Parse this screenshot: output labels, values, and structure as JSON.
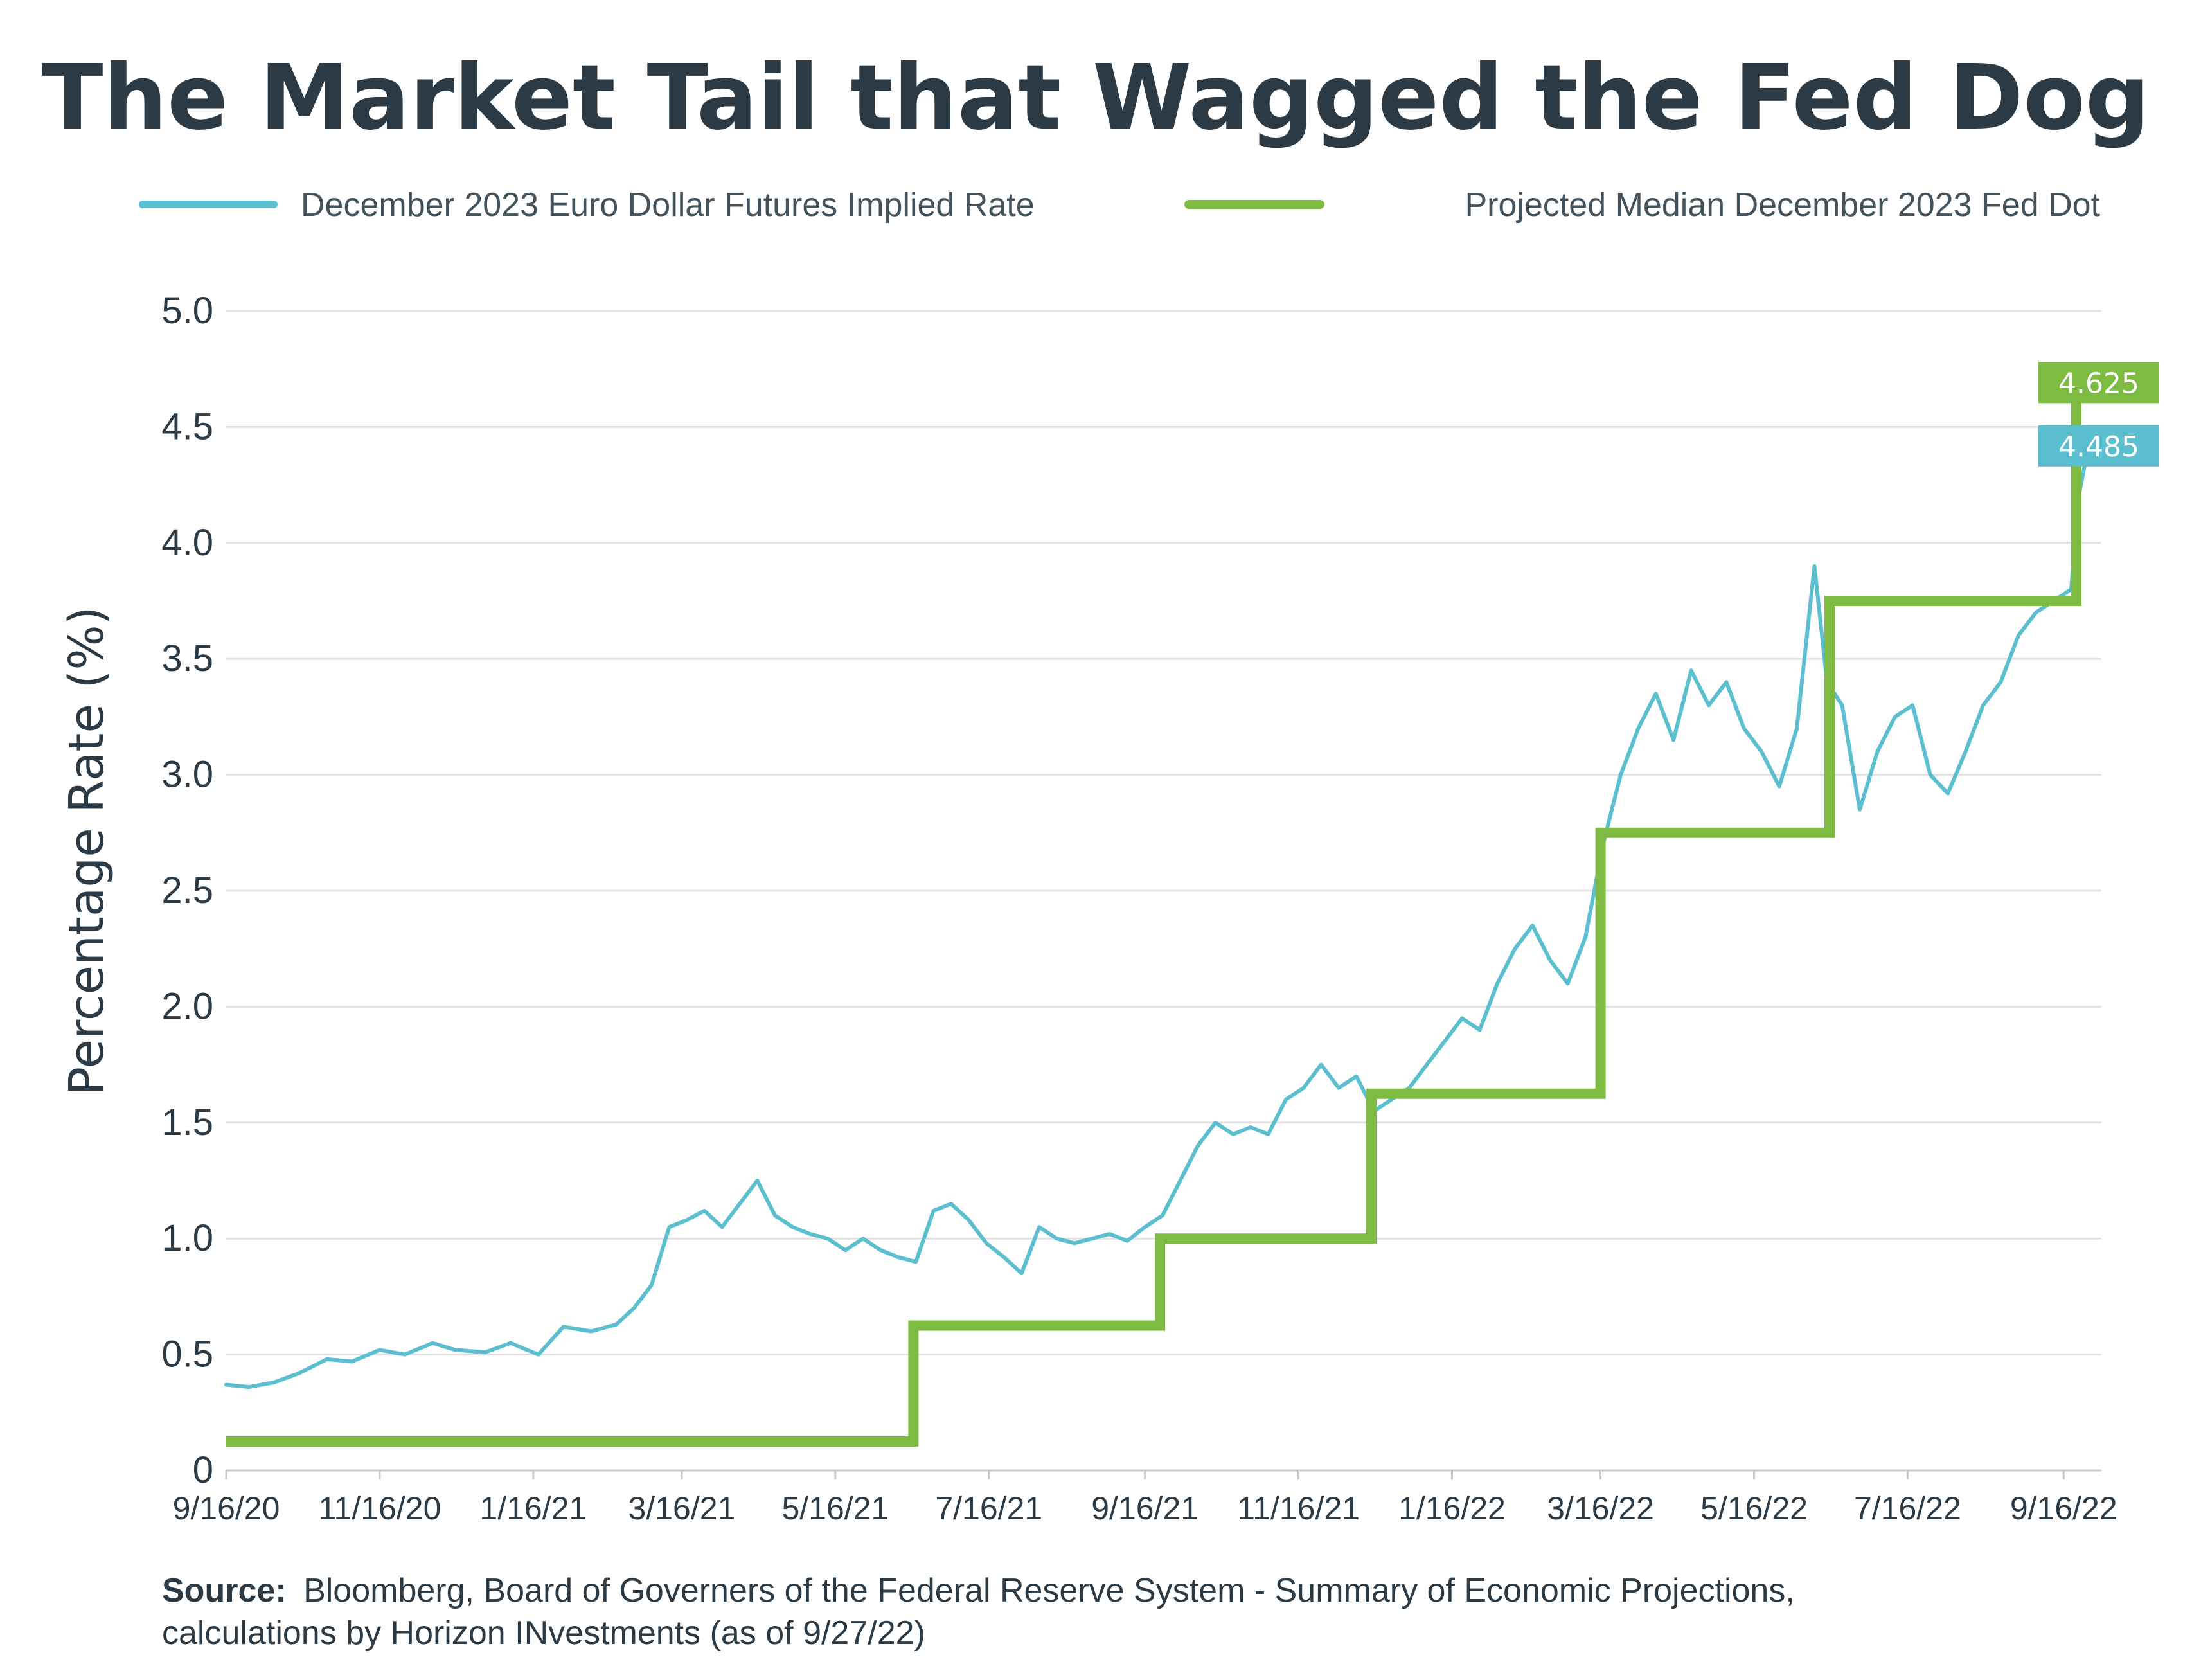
{
  "chart_data": {
    "type": "line",
    "title": "The Market Tail that Wagged the Fed Dog",
    "ylabel": "Percentage Rate (%)",
    "xlabel": "",
    "ylim": [
      0,
      5.0
    ],
    "y_ticks": [
      0,
      0.5,
      1.0,
      1.5,
      2.0,
      2.5,
      3.0,
      3.5,
      4.0,
      4.5,
      5.0
    ],
    "y_tick_labels": [
      "0",
      "0.5",
      "1.0",
      "1.5",
      "2.0",
      "2.5",
      "3.0",
      "3.5",
      "4.0",
      "4.5",
      "5.0"
    ],
    "x_range": [
      "2020-09-16",
      "2022-10-01"
    ],
    "x_ticks": [
      "2020-09-16",
      "2020-11-16",
      "2021-01-16",
      "2021-03-16",
      "2021-05-16",
      "2021-07-16",
      "2021-09-16",
      "2021-11-16",
      "2022-01-16",
      "2022-03-16",
      "2022-05-16",
      "2022-07-16",
      "2022-09-16"
    ],
    "x_tick_labels": [
      "9/16/20",
      "11/16/20",
      "1/16/21",
      "3/16/21",
      "5/16/21",
      "7/16/21",
      "9/16/21",
      "11/16/21",
      "1/16/22",
      "3/16/22",
      "5/16/22",
      "7/16/22",
      "9/16/22"
    ],
    "grid": "horizontal",
    "legend_position": "top",
    "series": [
      {
        "name": "December 2023 Euro Dollar Futures Implied Rate",
        "color": "#5bbfcf",
        "end_label": "4.485",
        "x": [
          "2020-09-16",
          "2020-09-25",
          "2020-10-05",
          "2020-10-15",
          "2020-10-26",
          "2020-11-05",
          "2020-11-16",
          "2020-11-26",
          "2020-12-07",
          "2020-12-16",
          "2020-12-28",
          "2021-01-07",
          "2021-01-18",
          "2021-01-28",
          "2021-02-08",
          "2021-02-18",
          "2021-02-25",
          "2021-03-04",
          "2021-03-11",
          "2021-03-18",
          "2021-03-25",
          "2021-04-01",
          "2021-04-08",
          "2021-04-15",
          "2021-04-22",
          "2021-04-29",
          "2021-05-06",
          "2021-05-13",
          "2021-05-20",
          "2021-05-27",
          "2021-06-03",
          "2021-06-10",
          "2021-06-17",
          "2021-06-24",
          "2021-07-01",
          "2021-07-08",
          "2021-07-15",
          "2021-07-22",
          "2021-07-29",
          "2021-08-05",
          "2021-08-12",
          "2021-08-19",
          "2021-08-26",
          "2021-09-02",
          "2021-09-09",
          "2021-09-16",
          "2021-09-23",
          "2021-09-30",
          "2021-10-07",
          "2021-10-14",
          "2021-10-21",
          "2021-10-28",
          "2021-11-04",
          "2021-11-11",
          "2021-11-18",
          "2021-11-25",
          "2021-12-02",
          "2021-12-09",
          "2021-12-16",
          "2021-12-23",
          "2021-12-30",
          "2022-01-06",
          "2022-01-13",
          "2022-01-20",
          "2022-01-27",
          "2022-02-03",
          "2022-02-10",
          "2022-02-17",
          "2022-02-24",
          "2022-03-03",
          "2022-03-10",
          "2022-03-17",
          "2022-03-24",
          "2022-03-31",
          "2022-04-07",
          "2022-04-14",
          "2022-04-21",
          "2022-04-28",
          "2022-05-05",
          "2022-05-12",
          "2022-05-19",
          "2022-05-26",
          "2022-06-02",
          "2022-06-09",
          "2022-06-14",
          "2022-06-20",
          "2022-06-27",
          "2022-07-04",
          "2022-07-11",
          "2022-07-18",
          "2022-07-25",
          "2022-08-01",
          "2022-08-08",
          "2022-08-15",
          "2022-08-22",
          "2022-08-29",
          "2022-09-05",
          "2022-09-12",
          "2022-09-19",
          "2022-09-22",
          "2022-09-27"
        ],
        "y": [
          0.37,
          0.36,
          0.38,
          0.42,
          0.48,
          0.47,
          0.52,
          0.5,
          0.55,
          0.52,
          0.51,
          0.55,
          0.5,
          0.62,
          0.6,
          0.63,
          0.7,
          0.8,
          1.05,
          1.08,
          1.12,
          1.05,
          1.15,
          1.25,
          1.1,
          1.05,
          1.02,
          1.0,
          0.95,
          1.0,
          0.95,
          0.92,
          0.9,
          1.12,
          1.15,
          1.08,
          0.98,
          0.92,
          0.85,
          1.05,
          1.0,
          0.98,
          1.0,
          1.02,
          0.99,
          1.05,
          1.1,
          1.25,
          1.4,
          1.5,
          1.45,
          1.48,
          1.45,
          1.6,
          1.65,
          1.75,
          1.65,
          1.7,
          1.55,
          1.6,
          1.65,
          1.75,
          1.85,
          1.95,
          1.9,
          2.1,
          2.25,
          2.35,
          2.2,
          2.1,
          2.3,
          2.7,
          3.0,
          3.2,
          3.35,
          3.15,
          3.45,
          3.3,
          3.4,
          3.2,
          3.1,
          2.95,
          3.2,
          3.9,
          3.4,
          3.3,
          2.85,
          3.1,
          3.25,
          3.3,
          3.0,
          2.92,
          3.1,
          3.3,
          3.4,
          3.6,
          3.7,
          3.75,
          3.8,
          4.2,
          4.485
        ]
      },
      {
        "name": "Projected Median December 2023 Fed Dot",
        "color": "#7dbb42",
        "end_label": "4.625",
        "step": true,
        "x": [
          "2020-09-16",
          "2021-06-16",
          "2021-09-22",
          "2021-12-15",
          "2022-03-16",
          "2022-06-15",
          "2022-09-21"
        ],
        "y": [
          0.125,
          0.625,
          1.0,
          1.625,
          2.75,
          3.75,
          4.625
        ]
      }
    ]
  },
  "source": {
    "label": "Source:",
    "line1": "Bloomberg, Board of Governers of the Federal Reserve System - Summary of Economic Projections,",
    "line2": "calculations by Horizon INvestments (as of 9/27/22)"
  }
}
